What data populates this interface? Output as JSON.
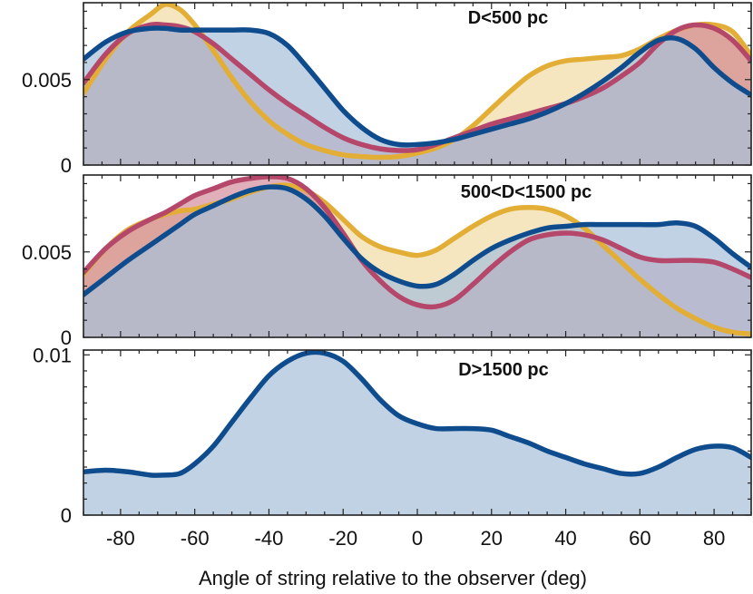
{
  "chart_data": {
    "type": "area",
    "xlabel": "Angle of string relative to the observer (deg)",
    "xlim": [
      -90,
      90
    ],
    "xticks": [
      -80,
      -60,
      -40,
      -20,
      0,
      20,
      40,
      60,
      80
    ],
    "xtick_labels": [
      "-80",
      "-60",
      "-40",
      "-20",
      "0",
      "20",
      "40",
      "60",
      "80"
    ],
    "colors": {
      "yellow": "#E3AE35",
      "red": "#B5476B",
      "blue": "#0E4C8E",
      "blue_fill": "#A9C1DA"
    },
    "panels": [
      {
        "title": "D<500 pc",
        "ylim": [
          0,
          0.0095
        ],
        "yticks": [
          0,
          0.005
        ],
        "ytick_labels": [
          "0",
          "0.005"
        ],
        "series": [
          {
            "name": "yellow",
            "x": [
              -90,
              -84,
              -78,
              -72,
              -68,
              -64,
              -60,
              -55,
              -50,
              -45,
              -40,
              -35,
              -30,
              -25,
              -20,
              -15,
              -10,
              -5,
              0,
              5,
              10,
              15,
              20,
              25,
              30,
              35,
              40,
              45,
              50,
              55,
              60,
              65,
              70,
              75,
              80,
              85,
              90
            ],
            "y": [
              0.0042,
              0.0062,
              0.0078,
              0.0088,
              0.0094,
              0.0091,
              0.0082,
              0.0067,
              0.0051,
              0.0037,
              0.0026,
              0.0018,
              0.0012,
              0.00085,
              0.0006,
              0.0005,
              0.00045,
              0.0005,
              0.0007,
              0.001,
              0.0015,
              0.0023,
              0.0033,
              0.0043,
              0.0052,
              0.0058,
              0.0061,
              0.0062,
              0.0063,
              0.0064,
              0.0068,
              0.0074,
              0.0079,
              0.0082,
              0.0082,
              0.0078,
              0.0064
            ]
          },
          {
            "name": "red",
            "x": [
              -90,
              -84,
              -78,
              -72,
              -68,
              -64,
              -60,
              -55,
              -50,
              -45,
              -40,
              -35,
              -30,
              -25,
              -20,
              -15,
              -10,
              -5,
              0,
              5,
              10,
              15,
              20,
              25,
              30,
              35,
              40,
              45,
              50,
              55,
              60,
              65,
              70,
              75,
              80,
              85,
              90
            ],
            "y": [
              0.0048,
              0.0065,
              0.0077,
              0.0082,
              0.0082,
              0.0081,
              0.0078,
              0.0071,
              0.0062,
              0.0053,
              0.0044,
              0.0036,
              0.0029,
              0.0022,
              0.0016,
              0.0012,
              0.00095,
              0.00085,
              0.0009,
              0.0012,
              0.0016,
              0.002,
              0.0024,
              0.0027,
              0.003,
              0.0033,
              0.0036,
              0.004,
              0.0045,
              0.0052,
              0.006,
              0.0071,
              0.0079,
              0.0082,
              0.008,
              0.0073,
              0.0061
            ]
          },
          {
            "name": "blue",
            "x": [
              -90,
              -84,
              -78,
              -72,
              -68,
              -64,
              -60,
              -55,
              -50,
              -45,
              -40,
              -35,
              -30,
              -25,
              -20,
              -15,
              -10,
              -5,
              0,
              5,
              10,
              15,
              20,
              25,
              30,
              35,
              40,
              45,
              50,
              55,
              60,
              65,
              70,
              75,
              80,
              85,
              90
            ],
            "y": [
              0.0062,
              0.0072,
              0.0078,
              0.008,
              0.008,
              0.0079,
              0.0079,
              0.0079,
              0.0079,
              0.0079,
              0.0077,
              0.007,
              0.0058,
              0.0045,
              0.0032,
              0.0022,
              0.0015,
              0.0012,
              0.0012,
              0.0013,
              0.0015,
              0.0018,
              0.0021,
              0.0024,
              0.0027,
              0.0031,
              0.0036,
              0.0042,
              0.0049,
              0.0057,
              0.0066,
              0.0073,
              0.0074,
              0.0068,
              0.0057,
              0.0048,
              0.0041
            ]
          }
        ]
      },
      {
        "title": "500<D<1500 pc",
        "ylim": [
          0,
          0.0095
        ],
        "yticks": [
          0,
          0.005
        ],
        "ytick_labels": [
          "0",
          "0.005"
        ],
        "series": [
          {
            "name": "yellow",
            "x": [
              -90,
              -84,
              -78,
              -72,
              -68,
              -64,
              -60,
              -55,
              -50,
              -45,
              -40,
              -35,
              -30,
              -25,
              -20,
              -15,
              -10,
              -5,
              0,
              5,
              10,
              15,
              20,
              25,
              30,
              35,
              40,
              45,
              50,
              55,
              60,
              65,
              70,
              75,
              80,
              85,
              90
            ],
            "y": [
              0.0037,
              0.0052,
              0.0063,
              0.0069,
              0.0072,
              0.0074,
              0.0075,
              0.0078,
              0.0081,
              0.0085,
              0.0088,
              0.0089,
              0.0086,
              0.0079,
              0.0069,
              0.0059,
              0.0053,
              0.005,
              0.0048,
              0.0051,
              0.0058,
              0.0065,
              0.0071,
              0.0075,
              0.0076,
              0.0075,
              0.0071,
              0.0064,
              0.0054,
              0.0044,
              0.0034,
              0.0025,
              0.0017,
              0.0011,
              0.0006,
              0.0003,
              0.0002
            ]
          },
          {
            "name": "red",
            "x": [
              -90,
              -84,
              -78,
              -72,
              -68,
              -64,
              -60,
              -55,
              -50,
              -45,
              -40,
              -35,
              -30,
              -25,
              -20,
              -15,
              -10,
              -5,
              0,
              5,
              10,
              15,
              20,
              25,
              30,
              35,
              40,
              45,
              50,
              55,
              60,
              65,
              70,
              75,
              80,
              85,
              90
            ],
            "y": [
              0.0038,
              0.0052,
              0.0062,
              0.0069,
              0.0073,
              0.0078,
              0.0083,
              0.0087,
              0.0091,
              0.0093,
              0.0094,
              0.0093,
              0.0087,
              0.0076,
              0.0061,
              0.0045,
              0.0033,
              0.0024,
              0.0019,
              0.0018,
              0.0022,
              0.0031,
              0.0041,
              0.005,
              0.0057,
              0.006,
              0.0061,
              0.006,
              0.0057,
              0.0052,
              0.0047,
              0.0045,
              0.0045,
              0.0045,
              0.0044,
              0.004,
              0.0035
            ]
          },
          {
            "name": "blue",
            "x": [
              -90,
              -84,
              -78,
              -72,
              -68,
              -64,
              -60,
              -55,
              -50,
              -45,
              -40,
              -35,
              -30,
              -25,
              -20,
              -15,
              -10,
              -5,
              0,
              5,
              10,
              15,
              20,
              25,
              30,
              35,
              40,
              45,
              50,
              55,
              60,
              65,
              70,
              75,
              80,
              85,
              90
            ],
            "y": [
              0.0025,
              0.0035,
              0.0045,
              0.0054,
              0.006,
              0.0066,
              0.0072,
              0.0077,
              0.0082,
              0.0086,
              0.0088,
              0.0087,
              0.0081,
              0.0071,
              0.0058,
              0.0046,
              0.0038,
              0.0033,
              0.003,
              0.0031,
              0.0037,
              0.0045,
              0.0052,
              0.0057,
              0.0061,
              0.0064,
              0.0065,
              0.0066,
              0.0066,
              0.0066,
              0.0066,
              0.0066,
              0.0067,
              0.0065,
              0.0058,
              0.0049,
              0.0041
            ]
          }
        ]
      },
      {
        "title": "D>1500 pc",
        "ylim": [
          0,
          0.0103
        ],
        "yticks": [
          0,
          0.01
        ],
        "ytick_labels": [
          "0",
          "0.01"
        ],
        "series": [
          {
            "name": "blue",
            "x": [
              -90,
              -84,
              -78,
              -72,
              -68,
              -64,
              -60,
              -55,
              -50,
              -45,
              -40,
              -35,
              -30,
              -25,
              -20,
              -15,
              -10,
              -5,
              0,
              5,
              10,
              15,
              20,
              25,
              30,
              35,
              40,
              45,
              50,
              55,
              60,
              65,
              70,
              75,
              80,
              85,
              90
            ],
            "y": [
              0.0027,
              0.0028,
              0.0027,
              0.0025,
              0.0025,
              0.0026,
              0.0032,
              0.0043,
              0.0058,
              0.0073,
              0.0087,
              0.0096,
              0.0101,
              0.0101,
              0.0096,
              0.0085,
              0.0072,
              0.0062,
              0.0057,
              0.0054,
              0.0054,
              0.0054,
              0.0053,
              0.0049,
              0.0045,
              0.004,
              0.0036,
              0.0032,
              0.0029,
              0.0026,
              0.0026,
              0.003,
              0.0036,
              0.0041,
              0.0043,
              0.0042,
              0.0036
            ]
          }
        ]
      }
    ]
  }
}
